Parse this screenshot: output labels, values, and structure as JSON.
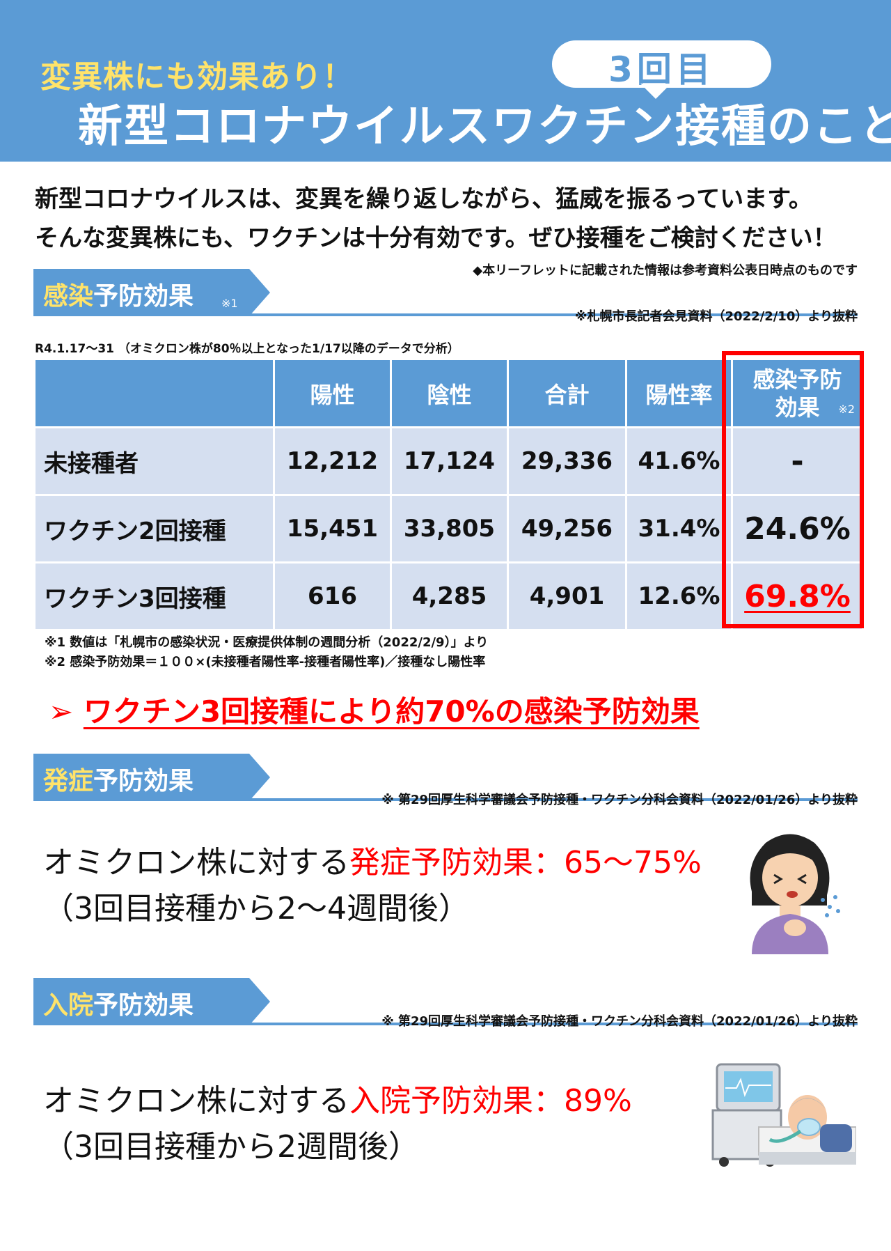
{
  "header": {
    "subtitle": "変異株にも効果あり！",
    "badge": "3回目",
    "title": "新型コロナウイルスワクチン接種のこと"
  },
  "intro": {
    "line1": "新型コロナウイルスは、変異を繰り返しながら、猛威を振るっています。",
    "line2": "そんな変異株にも、ワクチンは十分有効です。ぜひ接種をご検討ください！",
    "info_note": "◆本リーフレットに記載された情報は参考資料公表日時点のものです"
  },
  "sec1": {
    "title_hl": "感染",
    "title_rest": "予防効果",
    "ref_mark": "※1",
    "source": "※札幌市長記者会見資料（2022/2/10）より抜粋",
    "period": "R4.1.17～31 （オミクロン株が80％以上となった1/17以降のデータで分析）",
    "table": {
      "headers": [
        "",
        "陽性",
        "陰性",
        "合計",
        "陽性率"
      ],
      "eff_header_1": "感染予防",
      "eff_header_2": "効果",
      "eff_header_ref": "※2",
      "rows": [
        {
          "label": "未接種者",
          "positive": "12,212",
          "negative": "17,124",
          "total": "29,336",
          "rate": "41.6%",
          "effect": "-"
        },
        {
          "label": "ワクチン2回接種",
          "positive": "15,451",
          "negative": "33,805",
          "total": "49,256",
          "rate": "31.4%",
          "effect": "24.6%"
        },
        {
          "label": "ワクチン3回接種",
          "positive": "616",
          "negative": "4,285",
          "total": "4,901",
          "rate": "12.6%",
          "effect": "69.8%"
        }
      ]
    },
    "footnote1": "※1 数値は「札幌市の感染状況・医療提供体制の週間分析（2022/2/9）」より",
    "footnote2": "※2 感染予防効果＝１００×(未接種者陽性率-接種者陽性率)／接種なし陽性率",
    "callout_arrow": "➢",
    "callout": "ワクチン3回接種により約70%の感染予防効果"
  },
  "sec2": {
    "title_hl": "発症",
    "title_rest": "予防効果",
    "source": "※ 第29回厚生科学審議会予防接種・ワクチン分科会資料（2022/01/26）より抜粋",
    "line1_black": "オミクロン株に対する",
    "line1_red": "発症予防効果：65～75%",
    "line2": "（3回目接種から2～4週間後）"
  },
  "sec3": {
    "title_hl": "入院",
    "title_rest": "予防効果",
    "source": "※ 第29回厚生科学審議会予防接種・ワクチン分科会資料（2022/01/26）より抜粋",
    "line1_black": "オミクロン株に対する",
    "line1_red": "入院予防効果：89%",
    "line2": "（3回目接種から2週間後）"
  },
  "colors": {
    "accent_blue": "#5b9bd5",
    "highlight_yellow": "#ffe36a",
    "alert_red": "#ff0000",
    "table_row": "#d5dff0"
  },
  "icons": {
    "coughing_woman": "coughing-woman-illustration",
    "hospital_patient": "hospital-patient-illustration"
  }
}
